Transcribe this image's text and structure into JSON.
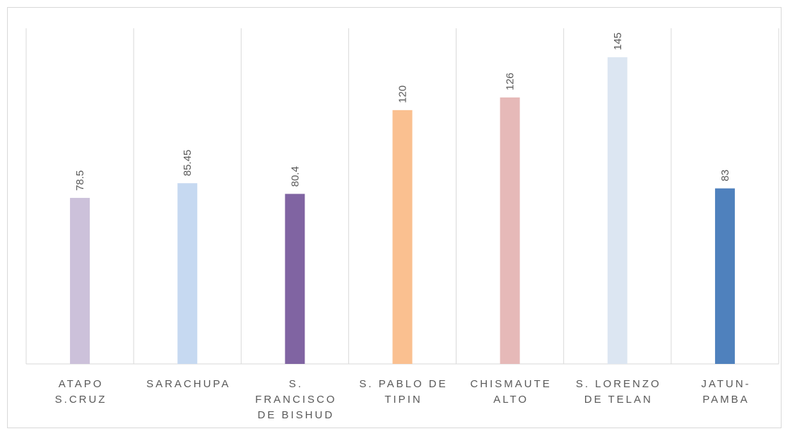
{
  "chart_data": {
    "type": "bar",
    "title": "",
    "xlabel": "",
    "ylabel": "",
    "categories": [
      [
        "ATAPO",
        "S.CRUZ"
      ],
      [
        "SARACHUPA"
      ],
      [
        "S.",
        "FRANCISCO",
        "DE BISHUD"
      ],
      [
        "S. PABLO DE",
        "TIPIN"
      ],
      [
        "CHISMAUTE",
        "ALTO"
      ],
      [
        "S. LORENZO",
        "DE TELAN"
      ],
      [
        "JATUN-",
        "PAMBA"
      ]
    ],
    "values": [
      78.5,
      85.45,
      80.4,
      120,
      126,
      145,
      83
    ],
    "data_labels": [
      "78.5",
      "85.45",
      "80.4",
      "120",
      "126",
      "145",
      "83"
    ],
    "colors": [
      "#ccc1da",
      "#c6d9f1",
      "#8064a2",
      "#fac090",
      "#e6b9b8",
      "#dce6f2",
      "#4f81bd"
    ],
    "ylim": [
      0,
      160
    ],
    "grid": "vertical",
    "legend": "none"
  }
}
